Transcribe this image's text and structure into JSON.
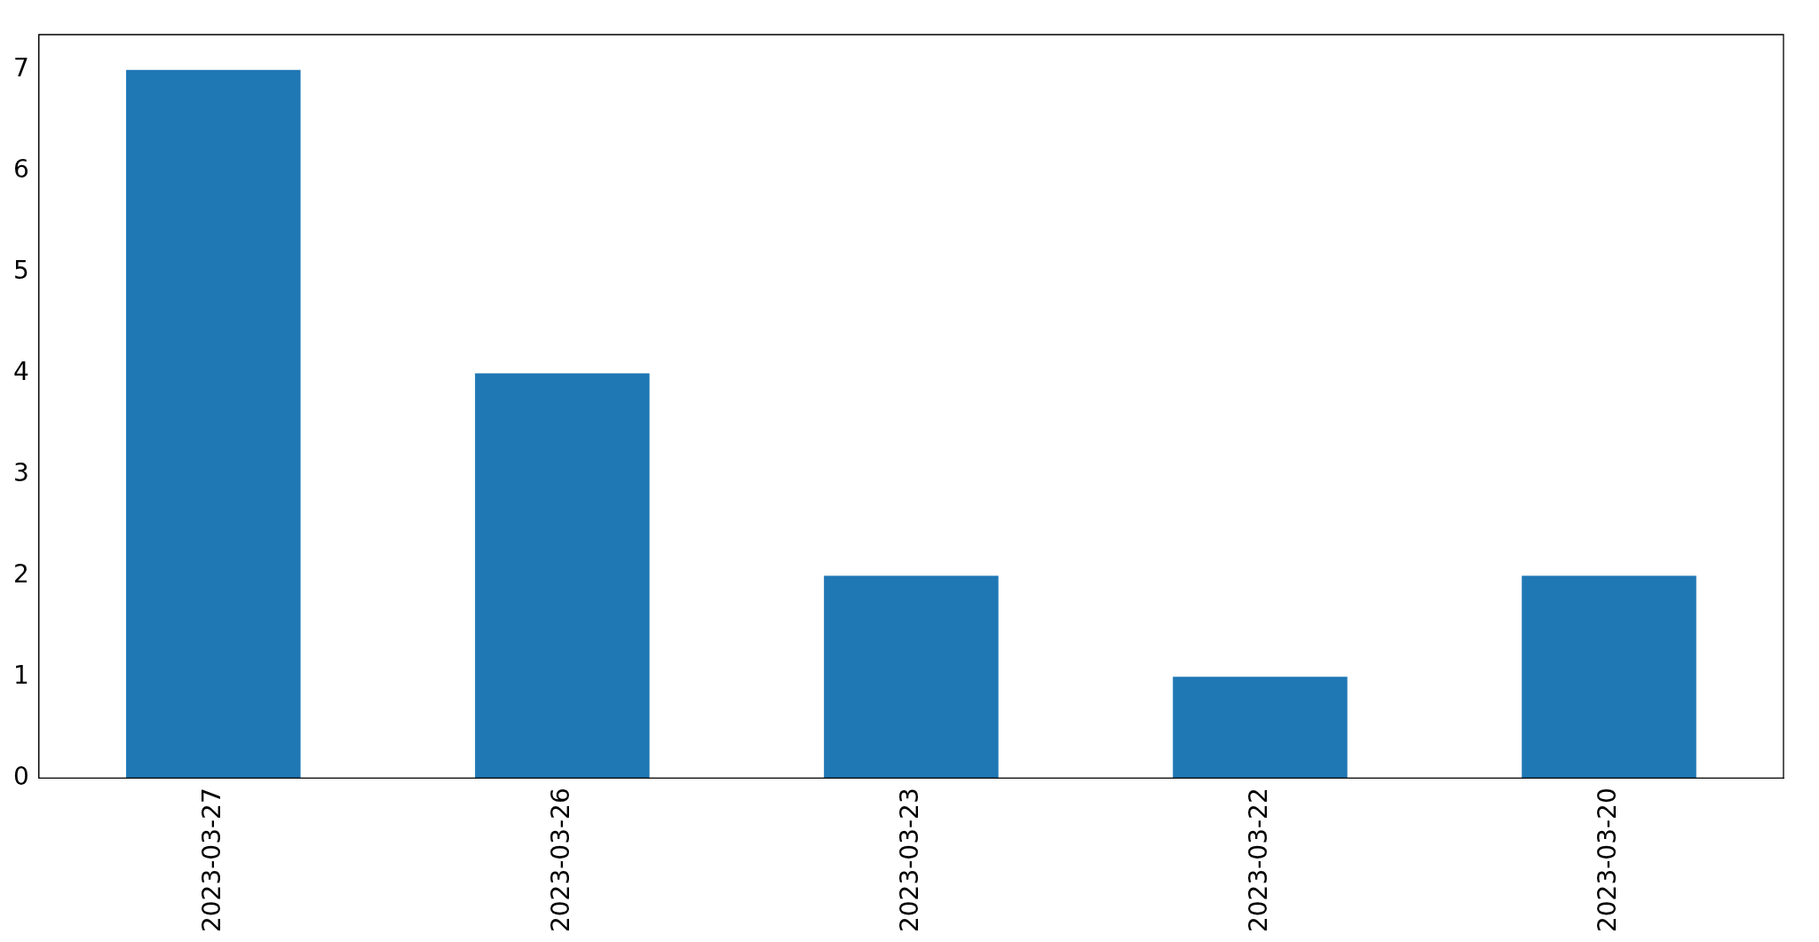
{
  "chart_data": {
    "type": "bar",
    "categories": [
      "2023-03-27",
      "2023-03-26",
      "2023-03-23",
      "2023-03-22",
      "2023-03-20"
    ],
    "values": [
      7,
      4,
      2,
      1,
      2
    ],
    "color": "#1f77b4",
    "ylim": [
      0,
      7.35
    ],
    "yticks": [
      0,
      1,
      2,
      3,
      4,
      5,
      6,
      7
    ],
    "grid": false,
    "legend": false
  }
}
